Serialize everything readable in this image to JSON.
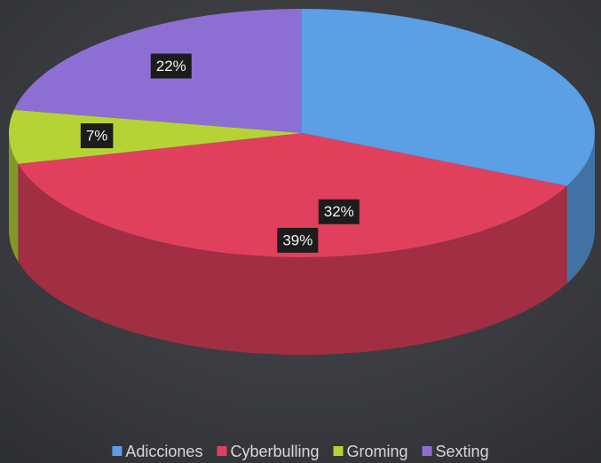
{
  "chart_data": {
    "type": "pie",
    "categories": [
      "Adicciones",
      "Cyberbulling",
      "Groming",
      "Sexting"
    ],
    "values": [
      32,
      39,
      7,
      22
    ],
    "value_labels": [
      "32%",
      "39%",
      "7%",
      "22%"
    ],
    "colors": [
      "#5b9fe4",
      "#e0405c",
      "#b6d336",
      "#8d6fd4"
    ],
    "legend": "bottom"
  }
}
